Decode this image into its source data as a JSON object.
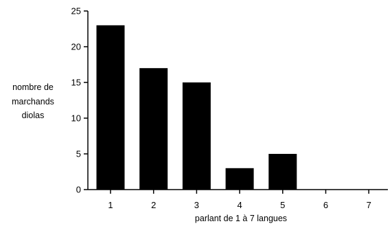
{
  "chart_data": {
    "type": "bar",
    "categories": [
      "1",
      "2",
      "3",
      "4",
      "5",
      "6",
      "7"
    ],
    "values": [
      23,
      17,
      15,
      3,
      5,
      0,
      0
    ],
    "ylabel_lines": [
      "nombre de",
      "marchands",
      "diolas"
    ],
    "xlabel": "parlant de 1 à 7 langues",
    "ylim": [
      0,
      25
    ],
    "yticks": [
      "0",
      "5",
      "10",
      "15",
      "20",
      "25"
    ],
    "grid": false,
    "bar_color": "#000000"
  }
}
